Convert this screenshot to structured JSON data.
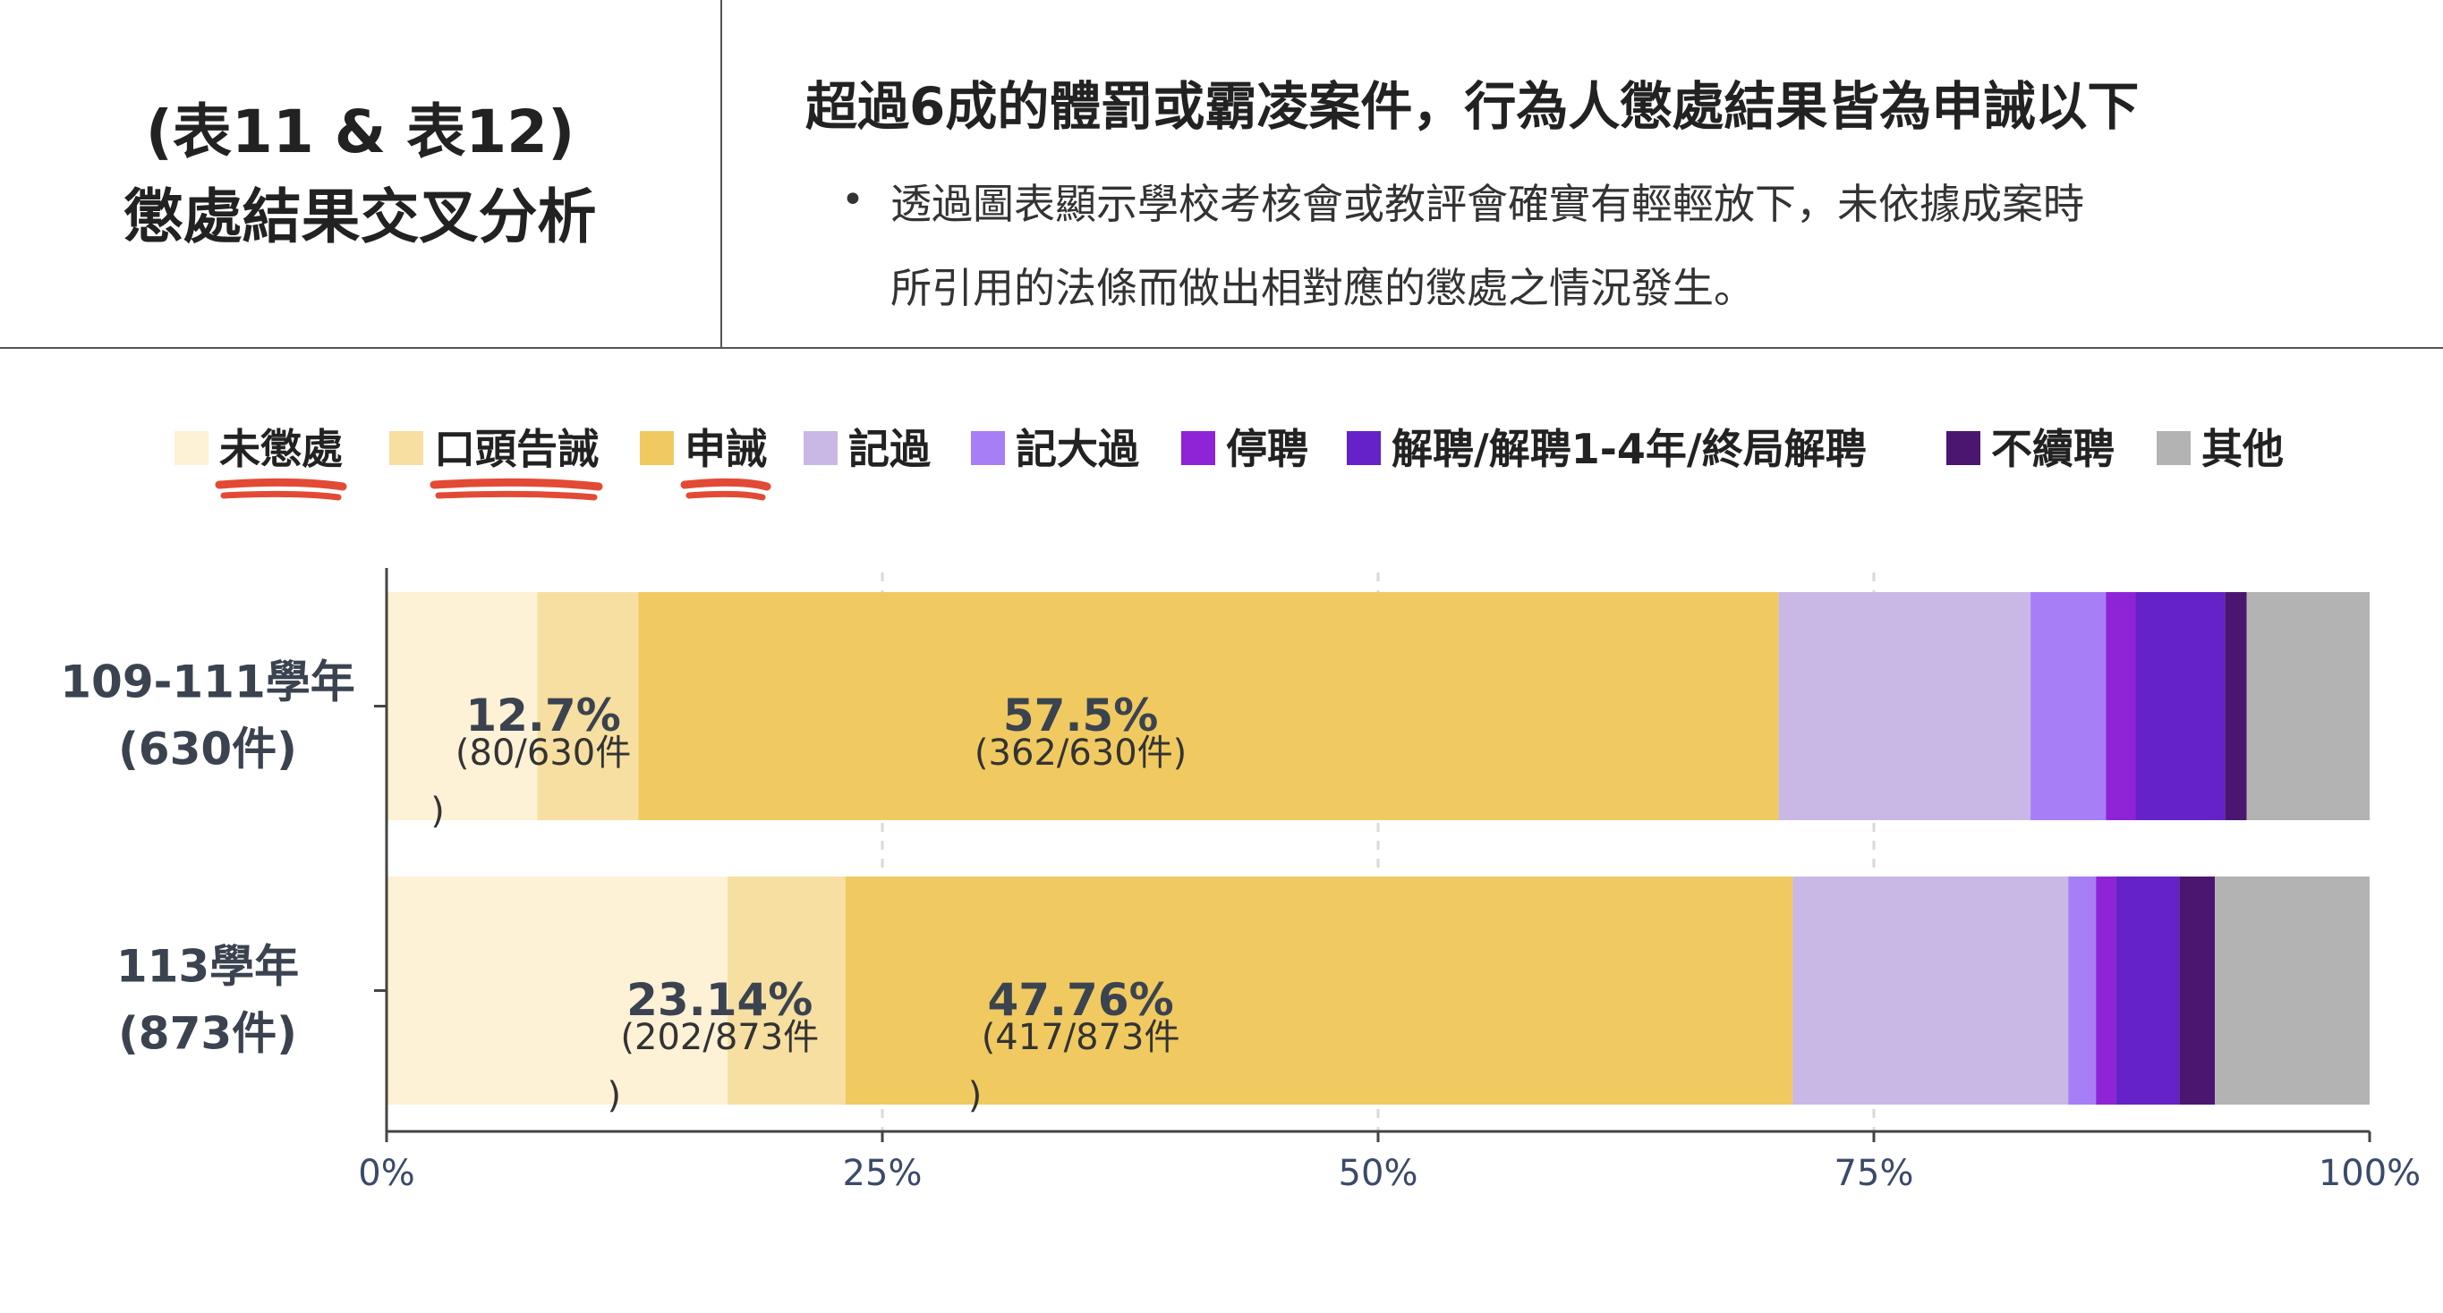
{
  "header": {
    "title_line1": "(表11 & 表12)",
    "title_line2": "懲處結果交叉分析",
    "headline": "超過6成的體罰或霸凌案件，行為人懲處結果皆為申誡以下",
    "bullet_symbol": "•",
    "bullet_line1": "透過圖表顯示學校考核會或教評會確實有輕輕放下，未依據成案時",
    "bullet_line2": "所引用的法條而做出相對應的懲處之情況發生。"
  },
  "colors": {
    "未懲處": "#fdf1d6",
    "口頭告誡": "#f6dfa0",
    "申誡": "#f0ca60",
    "記過": "#c9b8e6",
    "記大過": "#a77ef5",
    "停聘": "#8e24d6",
    "解聘": "#6422c8",
    "不續聘": "#4a1670",
    "其他": "#b3b3b3",
    "underline": "#e34a35",
    "axis_text": "#3b4a6b"
  },
  "chart_data": {
    "type": "bar",
    "orientation": "horizontal",
    "stacked": true,
    "normalized": true,
    "categories": [
      "109-111學年\n(630件)",
      "113學年\n(873件)"
    ],
    "category_lines": [
      [
        "109-111學年",
        "(630件)"
      ],
      [
        "113學年",
        "(873件)"
      ]
    ],
    "series": [
      {
        "name": "未懲處",
        "values": [
          7.6,
          17.2
        ]
      },
      {
        "name": "口頭告誡",
        "values": [
          5.1,
          5.94
        ]
      },
      {
        "name": "申誡",
        "values": [
          57.5,
          47.76
        ]
      },
      {
        "name": "記過",
        "values": [
          12.7,
          13.9
        ]
      },
      {
        "name": "記大過",
        "values": [
          3.8,
          1.4
        ]
      },
      {
        "name": "停聘",
        "values": [
          1.5,
          1.0
        ]
      },
      {
        "name": "解聘/解聘1-4年/終局解聘",
        "values": [
          4.5,
          3.2
        ]
      },
      {
        "name": "不續聘",
        "values": [
          1.1,
          1.8
        ]
      },
      {
        "name": "其他",
        "values": [
          6.2,
          7.8
        ]
      }
    ],
    "xlim": [
      0,
      100
    ],
    "x_ticks": [
      "0%",
      "25%",
      "50%",
      "75%",
      "100%"
    ],
    "legend_position": "top",
    "legend_underlined": [
      "未懲處",
      "口頭告誡",
      "申誡"
    ],
    "annotations": [
      {
        "row": 0,
        "x_mid": 7.9,
        "pct": "12.7%",
        "count": "(80/630件",
        "close": ")"
      },
      {
        "row": 0,
        "x_mid": 35.0,
        "pct": "57.5%",
        "count": "(362/630件)",
        "close": ""
      },
      {
        "row": 1,
        "x_mid": 16.8,
        "pct": "23.14%",
        "count": "(202/873件",
        "close": ")"
      },
      {
        "row": 1,
        "x_mid": 35.0,
        "pct": "47.76%",
        "count": "(417/873件",
        "close": ")"
      }
    ]
  }
}
